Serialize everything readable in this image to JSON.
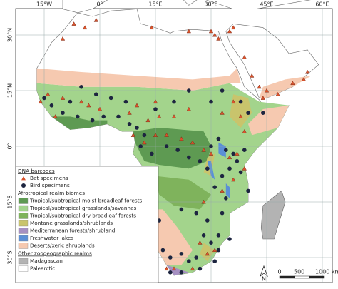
{
  "map": {
    "graticule": {
      "lon": [
        {
          "value": -15,
          "label": "15°W"
        },
        {
          "value": 0,
          "label": "0°"
        },
        {
          "value": 15,
          "label": "15°E"
        },
        {
          "value": 30,
          "label": "30°E"
        },
        {
          "value": 45,
          "label": "45°E"
        },
        {
          "value": 60,
          "label": "60°E"
        }
      ],
      "lat": [
        {
          "value": 30,
          "label": "30°N"
        },
        {
          "value": 15,
          "label": "15°N"
        },
        {
          "value": 0,
          "label": "0°"
        },
        {
          "value": -15,
          "label": "15°S"
        },
        {
          "value": -30,
          "label": "30°S"
        }
      ]
    },
    "legend": {
      "barcodes_title": "DNA barcodes",
      "specimens": [
        {
          "name": "Bat specimens",
          "color": "#d9532c"
        },
        {
          "name": "Bird specimens",
          "color": "#1d2540"
        }
      ],
      "biomes_title": "Afrotropical realm biomes",
      "biomes": [
        {
          "name": "Tropical/subtropical moist broadleaf forests",
          "color": "#5e9a52"
        },
        {
          "name": "Tropical/subtropical grasslands/savannas",
          "color": "#a3d48c"
        },
        {
          "name": "Tropical/subtropical dry broadleaf forests",
          "color": "#7fb35c"
        },
        {
          "name": "Montane grasslands/shrublands",
          "color": "#c9c46c"
        },
        {
          "name": "Mediterranean forests/shrubland",
          "color": "#a690c2"
        },
        {
          "name": "Freshwater lakes",
          "color": "#5b8fd6"
        },
        {
          "name": "Deserts/xeric shrublands",
          "color": "#f6c9b0"
        }
      ],
      "realms_title": "Other zoogeographic realms",
      "realms": [
        {
          "name": "Madagascan",
          "color": "#b3b3b3"
        },
        {
          "name": "Palearctic",
          "color": "#ffffff"
        }
      ]
    },
    "scale": {
      "labels": [
        "0",
        "500",
        "1000 km"
      ],
      "north": "N"
    },
    "bats": [
      [
        -7,
        33
      ],
      [
        -4,
        32
      ],
      [
        -10,
        29
      ],
      [
        -1,
        34
      ],
      [
        14,
        32
      ],
      [
        24,
        31
      ],
      [
        30,
        31
      ],
      [
        31,
        30
      ],
      [
        32,
        29
      ],
      [
        35,
        31
      ],
      [
        36,
        32
      ],
      [
        39,
        24
      ],
      [
        41,
        19
      ],
      [
        43,
        16
      ],
      [
        44,
        13
      ],
      [
        45,
        15
      ],
      [
        48,
        14
      ],
      [
        52,
        17
      ],
      [
        55,
        18
      ],
      [
        56,
        20
      ],
      [
        -14,
        14
      ],
      [
        -10,
        13
      ],
      [
        -5,
        12
      ],
      [
        -3,
        11
      ],
      [
        0,
        10
      ],
      [
        10,
        11
      ],
      [
        15,
        12
      ],
      [
        24,
        10
      ],
      [
        33,
        9
      ],
      [
        36,
        12
      ],
      [
        38,
        8
      ],
      [
        39,
        4
      ],
      [
        9,
        3
      ],
      [
        12,
        1
      ],
      [
        15,
        3
      ],
      [
        18,
        3
      ],
      [
        22,
        2
      ],
      [
        25,
        1
      ],
      [
        28,
        -1
      ],
      [
        30,
        -2
      ],
      [
        35,
        -3
      ],
      [
        37,
        -2
      ],
      [
        39,
        -6
      ],
      [
        36,
        -9
      ],
      [
        33,
        -12
      ],
      [
        28,
        -15
      ],
      [
        27,
        -26
      ],
      [
        29,
        -29
      ],
      [
        31,
        -28
      ],
      [
        25,
        -33
      ],
      [
        20,
        -33
      ],
      [
        18,
        -33
      ],
      [
        -16,
        12
      ],
      [
        -12,
        8
      ],
      [
        8,
        9
      ],
      [
        13,
        7
      ],
      [
        16,
        8
      ],
      [
        20,
        8
      ]
    ],
    "birds": [
      [
        -5,
        16
      ],
      [
        -15,
        13
      ],
      [
        -13,
        11
      ],
      [
        -10,
        9
      ],
      [
        -6,
        8
      ],
      [
        -2,
        7
      ],
      [
        1,
        8
      ],
      [
        5,
        8
      ],
      [
        8,
        6
      ],
      [
        10,
        5
      ],
      [
        12,
        3
      ],
      [
        11,
        0
      ],
      [
        14,
        -2
      ],
      [
        18,
        0
      ],
      [
        21,
        -1
      ],
      [
        24,
        -3
      ],
      [
        27,
        -4
      ],
      [
        29,
        -6
      ],
      [
        30,
        0
      ],
      [
        32,
        2
      ],
      [
        34,
        -1
      ],
      [
        36,
        -2
      ],
      [
        37,
        -4
      ],
      [
        38,
        -7
      ],
      [
        35,
        -6
      ],
      [
        33,
        -8
      ],
      [
        31,
        -11
      ],
      [
        34,
        -14
      ],
      [
        33,
        -18
      ],
      [
        29,
        -20
      ],
      [
        26,
        -18
      ],
      [
        22,
        -17
      ],
      [
        16,
        -20
      ],
      [
        14,
        -23
      ],
      [
        17,
        -28
      ],
      [
        19,
        -30
      ],
      [
        22,
        -29
      ],
      [
        24,
        -31
      ],
      [
        26,
        -30
      ],
      [
        28,
        -24
      ],
      [
        30,
        -26
      ],
      [
        32,
        -24
      ],
      [
        31,
        -31
      ],
      [
        27,
        -33
      ],
      [
        22,
        -34
      ],
      [
        19,
        -34
      ],
      [
        38,
        12
      ],
      [
        40,
        9
      ],
      [
        44,
        9
      ],
      [
        33,
        15
      ],
      [
        30,
        12
      ],
      [
        24,
        15
      ],
      [
        20,
        12
      ],
      [
        15,
        10
      ],
      [
        7,
        12
      ],
      [
        3,
        13
      ],
      [
        -1,
        14
      ],
      [
        -8,
        12
      ],
      [
        39,
        -1
      ],
      [
        15,
        -9
      ],
      [
        13,
        -15
      ],
      [
        40,
        -12
      ],
      [
        35,
        -25
      ],
      [
        32,
        -28
      ]
    ]
  }
}
